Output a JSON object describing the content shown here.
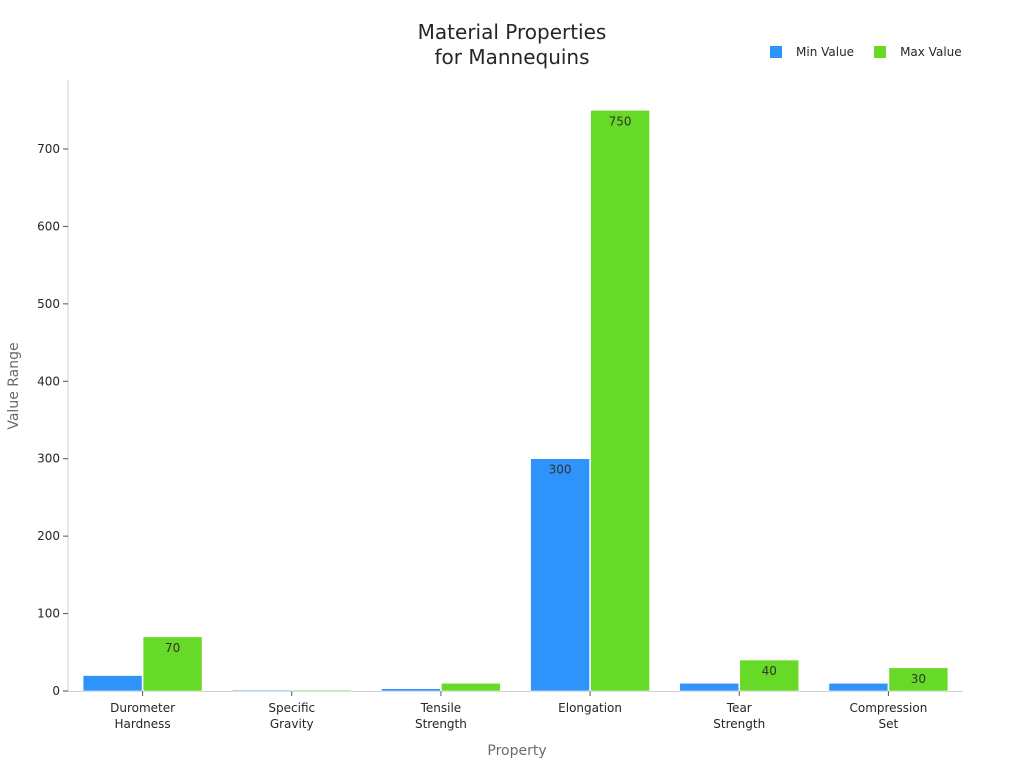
{
  "chart_data": {
    "type": "bar",
    "title": "Material Properties for Mannequins",
    "title_lines": [
      "Material Properties",
      "for Mannequins"
    ],
    "xlabel": "Property",
    "ylabel": "Value Range",
    "categories": [
      "Durometer Hardness",
      "Specific Gravity",
      "Tensile Strength",
      "Elongation",
      "Tear Strength",
      "Compression Set"
    ],
    "category_lines": [
      [
        "Durometer",
        "Hardness"
      ],
      [
        "Specific",
        "Gravity"
      ],
      [
        "Tensile",
        "Strength"
      ],
      [
        "Elongation"
      ],
      [
        "Tear",
        "Strength"
      ],
      [
        "Compression",
        "Set"
      ]
    ],
    "series": [
      {
        "name": "Min Value",
        "color": "#2E93FA",
        "values": [
          20,
          1,
          3,
          300,
          10,
          10
        ]
      },
      {
        "name": "Max Value",
        "color": "#66DA26",
        "values": [
          70,
          1.2,
          10,
          750,
          40,
          30
        ]
      }
    ],
    "ylim": [
      0,
      790
    ],
    "yticks": [
      0,
      100,
      200,
      300,
      400,
      500,
      600,
      700
    ],
    "grid": false,
    "legend_position": "top-right"
  },
  "legend": {
    "items": [
      {
        "label": "Min Value",
        "color": "#2E93FA"
      },
      {
        "label": "Max Value",
        "color": "#66DA26"
      }
    ]
  }
}
